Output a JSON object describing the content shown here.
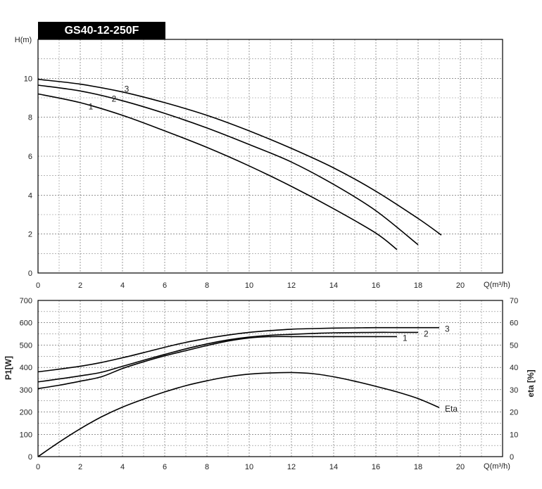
{
  "chart_data": [
    {
      "type": "line",
      "title": "GS40-12-250F",
      "xlabel": "Q(m³/h)",
      "ylabel": "H(m)",
      "xlim": [
        0,
        22
      ],
      "ylim": [
        0,
        12
      ],
      "xticks": [
        0,
        2,
        4,
        6,
        8,
        10,
        12,
        14,
        16,
        18,
        20
      ],
      "yticks": [
        0,
        2,
        4,
        6,
        8,
        10
      ],
      "grid": true,
      "series": [
        {
          "name": "1",
          "x": [
            0,
            2,
            4,
            6,
            8,
            10,
            12,
            14,
            16,
            17
          ],
          "y": [
            9.2,
            8.75,
            8.1,
            7.3,
            6.45,
            5.5,
            4.45,
            3.3,
            2.05,
            1.2
          ]
        },
        {
          "name": "2",
          "x": [
            0,
            2,
            4,
            6,
            8,
            10,
            12,
            14,
            16,
            18
          ],
          "y": [
            9.65,
            9.35,
            8.85,
            8.2,
            7.45,
            6.6,
            5.7,
            4.55,
            3.2,
            1.45
          ]
        },
        {
          "name": "3",
          "x": [
            0,
            2,
            4,
            6,
            8,
            10,
            12,
            14,
            16,
            18,
            19.1
          ],
          "y": [
            9.95,
            9.7,
            9.3,
            8.75,
            8.1,
            7.3,
            6.4,
            5.4,
            4.2,
            2.8,
            1.95
          ]
        }
      ]
    },
    {
      "type": "line",
      "xlabel": "Q(m³/h)",
      "ylabel": "P1[W]",
      "y2label": "eta [%]",
      "xlim": [
        0,
        22
      ],
      "ylim": [
        0,
        700
      ],
      "y2lim": [
        0,
        70
      ],
      "xticks": [
        0,
        2,
        4,
        6,
        8,
        10,
        12,
        14,
        16,
        18,
        20
      ],
      "yticks": [
        0,
        100,
        200,
        300,
        400,
        500,
        600,
        700
      ],
      "y2ticks": [
        0,
        10,
        20,
        30,
        40,
        50,
        60,
        70
      ],
      "grid": true,
      "series": [
        {
          "name": "1",
          "axis": "P1",
          "x": [
            0,
            1,
            2,
            3,
            4,
            5,
            6,
            7,
            8,
            9,
            10,
            11,
            12,
            13,
            14,
            15,
            16,
            17
          ],
          "y": [
            305,
            320,
            338,
            358,
            395,
            425,
            452,
            475,
            498,
            518,
            532,
            538,
            538,
            538,
            538,
            538,
            538,
            538
          ]
        },
        {
          "name": "2",
          "axis": "P1",
          "x": [
            0,
            1,
            2,
            3,
            4,
            5,
            6,
            7,
            8,
            9,
            10,
            11,
            12,
            13,
            14,
            15,
            16,
            17,
            18
          ],
          "y": [
            335,
            348,
            362,
            378,
            405,
            432,
            458,
            483,
            505,
            523,
            536,
            544,
            548,
            552,
            555,
            556,
            557,
            557,
            557
          ]
        },
        {
          "name": "3",
          "axis": "P1",
          "x": [
            0,
            1,
            2,
            3,
            4,
            5,
            6,
            7,
            8,
            9,
            10,
            11,
            12,
            13,
            14,
            15,
            16,
            17,
            18,
            19
          ],
          "y": [
            380,
            392,
            405,
            422,
            443,
            466,
            490,
            512,
            530,
            545,
            557,
            565,
            571,
            574,
            576,
            577,
            578,
            578,
            578,
            578
          ]
        },
        {
          "name": "Eta",
          "axis": "eta",
          "x": [
            0,
            1,
            2,
            3,
            4,
            5,
            6,
            7,
            8,
            9,
            10,
            11,
            12,
            13,
            14,
            15,
            16,
            17,
            18,
            19
          ],
          "y": [
            0,
            6.5,
            12.5,
            17.8,
            22.2,
            25.8,
            29.0,
            31.8,
            34.0,
            35.8,
            37.0,
            37.5,
            37.7,
            37.2,
            35.8,
            33.8,
            31.5,
            29.0,
            26.0,
            22.0
          ]
        }
      ]
    }
  ]
}
